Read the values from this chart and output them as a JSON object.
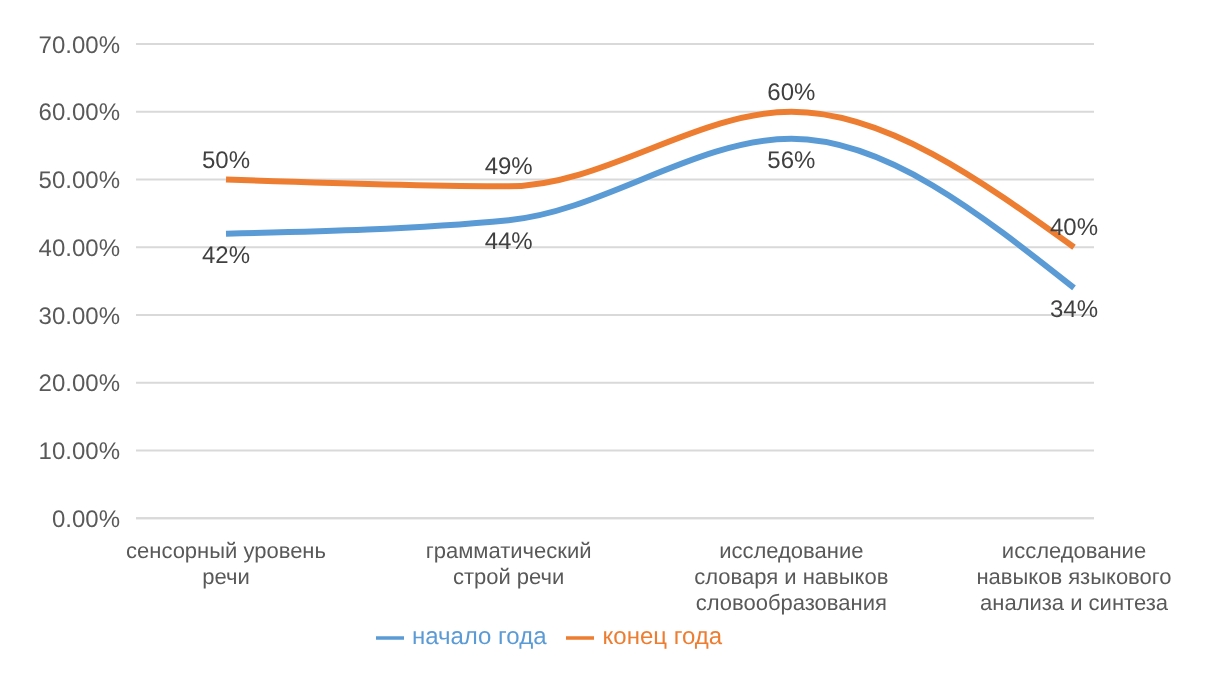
{
  "chart_data": {
    "type": "line",
    "categories": [
      "сенсорный уровень речи",
      "грамматический строй речи",
      "исследование словаря и навыков словообразования",
      "исследование навыков языкового анализа и синтеза"
    ],
    "series": [
      {
        "name": "начало года",
        "color": "#5b9bd5",
        "values": [
          42,
          44,
          56,
          34
        ],
        "value_labels": [
          "42%",
          "44%",
          "56%",
          "34%"
        ]
      },
      {
        "name": "конец года",
        "color": "#ed7d31",
        "values": [
          50,
          49,
          60,
          40
        ],
        "value_labels": [
          "50%",
          "49%",
          "60%",
          "40%"
        ]
      }
    ],
    "ylim": [
      0,
      70
    ],
    "yticks": [
      {
        "value": 0,
        "label": "0.00%"
      },
      {
        "value": 10,
        "label": "10.00%"
      },
      {
        "value": 20,
        "label": "20.00%"
      },
      {
        "value": 30,
        "label": "30.00%"
      },
      {
        "value": 40,
        "label": "40.00%"
      },
      {
        "value": 50,
        "label": "50.00%"
      },
      {
        "value": 60,
        "label": "60.00%"
      },
      {
        "value": 70,
        "label": "70.00%"
      }
    ],
    "grid": "y",
    "legend": "bottom",
    "marker": "none",
    "line_style": "solid"
  }
}
